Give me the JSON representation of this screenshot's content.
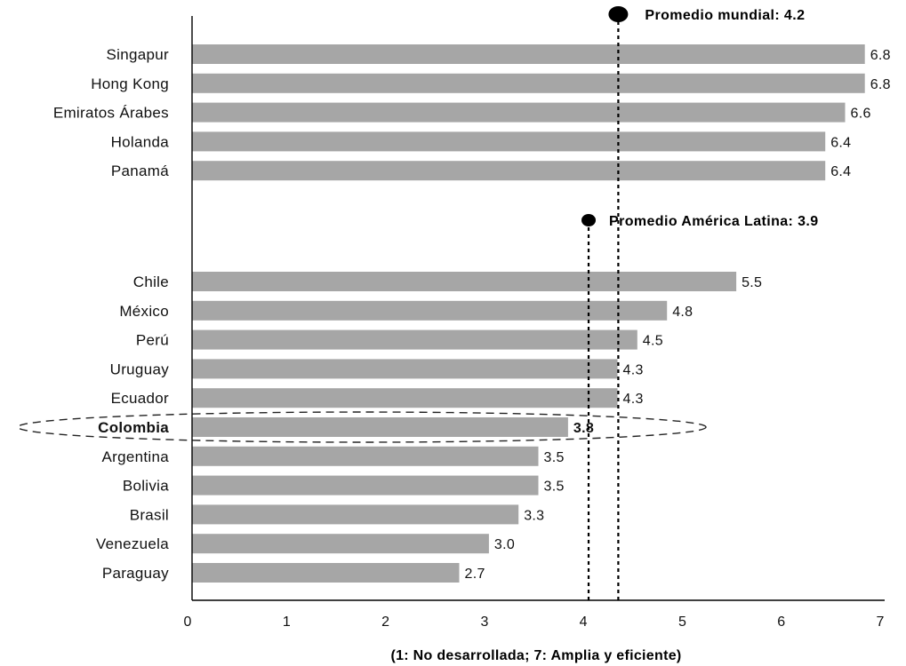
{
  "chart_data": {
    "type": "bar",
    "orientation": "horizontal",
    "groups": [
      {
        "categories": [
          "Singapur",
          "Hong Kong",
          "Emiratos Árabes",
          "Holanda",
          "Panamá"
        ],
        "values": [
          6.8,
          6.8,
          6.6,
          6.4,
          6.4
        ],
        "labels": [
          "6.8",
          "6.8",
          "6.6",
          "6.4",
          "6.4"
        ]
      },
      {
        "categories": [
          "Chile",
          "México",
          "Perú",
          "Uruguay",
          "Ecuador",
          "Colombia",
          "Argentina",
          "Bolivia",
          "Brasil",
          "Venezuela",
          "Paraguay"
        ],
        "values": [
          5.5,
          4.8,
          4.5,
          4.3,
          4.3,
          3.8,
          3.5,
          3.5,
          3.3,
          3.0,
          2.7
        ],
        "labels": [
          "5.5",
          "4.8",
          "4.5",
          "4.3",
          "4.3",
          "3.8",
          "3.5",
          "3.5",
          "3.3",
          "3.0",
          "2.7"
        ]
      }
    ],
    "highlight": "Colombia",
    "reference_lines": [
      {
        "label": "Promedio mundial: 4.2",
        "value": 4.2
      },
      {
        "label": "Promedio América Latina: 3.9",
        "value": 3.9
      }
    ],
    "xlim": [
      0,
      7
    ],
    "xticks": [
      "0",
      "1",
      "2",
      "3",
      "4",
      "5",
      "6",
      "7"
    ],
    "xlabel": "(1: No desarrollada; 7: Amplia y eficiente)",
    "title": "",
    "grid": false,
    "colors": {
      "bar": "#a6a6a6",
      "text": "#111111"
    }
  }
}
